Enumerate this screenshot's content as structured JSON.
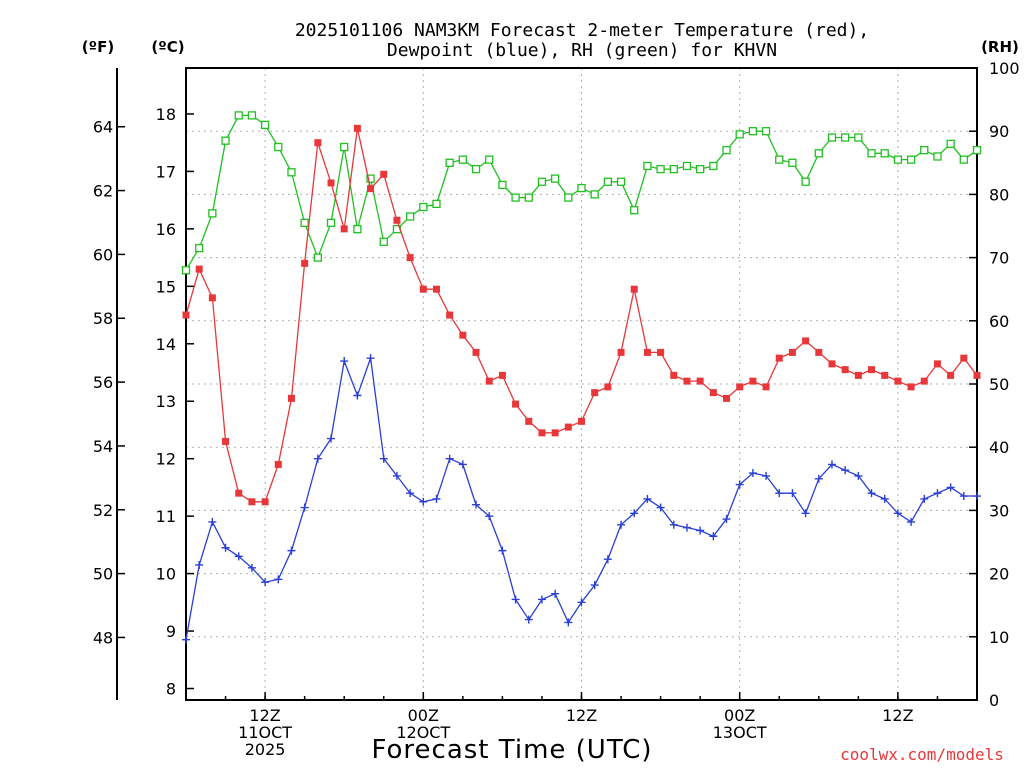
{
  "chart_data": {
    "type": "line",
    "title_line1": "2025101106 NAM3KM Forecast 2-meter Temperature (red),",
    "title_line2": "Dewpoint (blue), RH (green) for KHVN",
    "unit_f": "(ºF)",
    "unit_c": "(ºC)",
    "unit_rh": "(RH)",
    "xlabel": "Forecast Time (UTC)",
    "credit": "coolwx.com/models",
    "x_range_hours": [
      6,
      66
    ],
    "x_ticks": [
      {
        "hour": 12,
        "lines": [
          "12Z",
          "11OCT",
          "2025"
        ]
      },
      {
        "hour": 24,
        "lines": [
          "00Z",
          "12OCT"
        ]
      },
      {
        "hour": 36,
        "lines": [
          "12Z"
        ]
      },
      {
        "hour": 48,
        "lines": [
          "00Z",
          "13OCT"
        ]
      },
      {
        "hour": 60,
        "lines": [
          "12Z"
        ]
      }
    ],
    "celsius_axis": {
      "range": [
        7.8,
        18.8
      ],
      "ticks": [
        "8",
        "9",
        "10",
        "11",
        "12",
        "13",
        "14",
        "15",
        "16",
        "17",
        "18"
      ]
    },
    "fahrenheit_ticks": [
      "48",
      "50",
      "52",
      "54",
      "56",
      "58",
      "60",
      "62",
      "64"
    ],
    "rh_axis": {
      "range": [
        0,
        100
      ],
      "ticks": [
        "0",
        "10",
        "20",
        "30",
        "40",
        "50",
        "60",
        "70",
        "80",
        "90",
        "100"
      ]
    },
    "colors": {
      "temperature": "#e8373a",
      "dewpoint": "#2a3fd6",
      "rh": "#20c020"
    },
    "series": [
      {
        "name": "Temperature",
        "unit": "C",
        "start_hour": 6,
        "step_hours": 1,
        "values": [
          14.5,
          15.3,
          14.8,
          12.3,
          11.4,
          11.25,
          11.25,
          11.9,
          13.05,
          15.4,
          17.5,
          16.8,
          16.0,
          17.75,
          16.7,
          16.95,
          16.15,
          15.5,
          14.95,
          14.95,
          14.5,
          14.15,
          13.85,
          13.35,
          13.45,
          12.95,
          12.65,
          12.45,
          12.45,
          12.55,
          12.65,
          13.15,
          13.25,
          13.85,
          14.95,
          13.85,
          13.85,
          13.45,
          13.35,
          13.35,
          13.15,
          13.05,
          13.25,
          13.35,
          13.25,
          13.75,
          13.85,
          14.05,
          13.85,
          13.65,
          13.55,
          13.45,
          13.55,
          13.45,
          13.35,
          13.25,
          13.35,
          13.65,
          13.45,
          13.75,
          13.45
        ]
      },
      {
        "name": "Dewpoint",
        "unit": "C",
        "start_hour": 6,
        "step_hours": 1,
        "values": [
          8.85,
          10.15,
          10.9,
          10.45,
          10.3,
          10.1,
          9.85,
          9.9,
          10.4,
          11.15,
          12.0,
          12.35,
          13.7,
          13.1,
          13.75,
          12.0,
          11.7,
          11.4,
          11.25,
          11.3,
          12.0,
          11.9,
          11.2,
          11.0,
          10.4,
          9.55,
          9.2,
          9.55,
          9.65,
          9.15,
          9.5,
          9.8,
          10.25,
          10.85,
          11.05,
          11.3,
          11.15,
          10.85,
          10.8,
          10.75,
          10.65,
          10.95,
          11.55,
          11.75,
          11.7,
          11.4,
          11.4,
          11.05,
          11.65,
          11.9,
          11.8,
          11.7,
          11.4,
          11.3,
          11.05,
          10.9,
          11.3,
          11.4,
          11.5,
          11.35,
          11.35
        ]
      },
      {
        "name": "RH",
        "unit": "%",
        "start_hour": 6,
        "step_hours": 1,
        "values": [
          68,
          71.5,
          77,
          88.5,
          92.5,
          92.5,
          91,
          87.5,
          83.5,
          75.5,
          70,
          75.5,
          87.5,
          74.5,
          82.5,
          72.5,
          74.5,
          76.5,
          78,
          78.5,
          85,
          85.5,
          84,
          85.5,
          81.5,
          79.5,
          79.5,
          82,
          82.5,
          79.5,
          81,
          80,
          82,
          82,
          77.5,
          84.5,
          84,
          84,
          84.5,
          84,
          84.5,
          87,
          89.5,
          90,
          90,
          85.5,
          85,
          82,
          86.5,
          89,
          89,
          89,
          86.5,
          86.5,
          85.5,
          85.5,
          87,
          86,
          88,
          85.5,
          87
        ]
      }
    ]
  }
}
